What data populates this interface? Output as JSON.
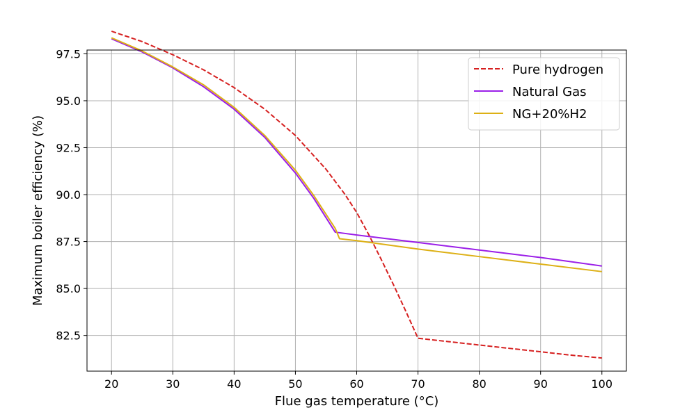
{
  "chart_data": {
    "type": "line",
    "title": "",
    "xlabel": "Flue gas temperature (°C)",
    "ylabel": "Maximum boiler efficiency (%)",
    "xlim": [
      16,
      104
    ],
    "ylim": [
      80.6,
      97.7
    ],
    "xticks": [
      20,
      30,
      40,
      50,
      60,
      70,
      80,
      90,
      100
    ],
    "yticks": [
      82.5,
      85.0,
      87.5,
      90.0,
      92.5,
      95.0,
      97.5
    ],
    "grid": true,
    "legend_position": "top-right",
    "series": [
      {
        "name": "Pure hydrogen",
        "color": "#d62020",
        "style": "dashed",
        "x": [
          20,
          25,
          30,
          35,
          40,
          45,
          50,
          55,
          58,
          60,
          62,
          64,
          66,
          68,
          70,
          75,
          80,
          85,
          90,
          95,
          100
        ],
        "y": [
          98.7,
          98.15,
          97.45,
          96.65,
          95.7,
          94.55,
          93.15,
          91.35,
          90.05,
          89.05,
          87.85,
          86.55,
          85.2,
          83.8,
          82.35,
          82.17,
          81.99,
          81.81,
          81.63,
          81.45,
          81.3
        ]
      },
      {
        "name": "Natural Gas",
        "color": "#9b1fe8",
        "style": "solid",
        "x": [
          20,
          25,
          30,
          35,
          40,
          45,
          50,
          53,
          56.5,
          60,
          70,
          80,
          90,
          100
        ],
        "y": [
          98.3,
          97.6,
          96.75,
          95.75,
          94.55,
          93.05,
          91.15,
          89.8,
          88.0,
          87.85,
          87.45,
          87.05,
          86.65,
          86.2
        ]
      },
      {
        "name": "NG+20%H2",
        "color": "#ddb015",
        "style": "solid",
        "x": [
          20,
          25,
          30,
          35,
          40,
          45,
          50,
          53,
          56.5,
          57.2,
          60,
          70,
          80,
          90,
          100
        ],
        "y": [
          98.35,
          97.65,
          96.8,
          95.85,
          94.65,
          93.15,
          91.3,
          89.95,
          88.2,
          87.65,
          87.55,
          87.1,
          86.7,
          86.3,
          85.9
        ]
      }
    ]
  }
}
